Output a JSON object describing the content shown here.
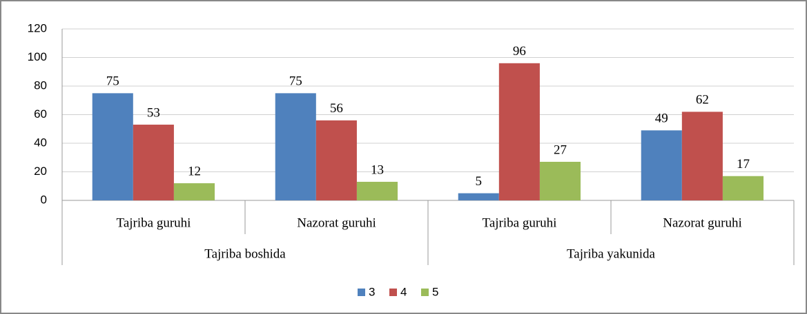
{
  "chart_data": {
    "type": "bar",
    "categories": [
      "Tajriba guruhi",
      "Nazorat guruhi",
      "Tajriba guruhi",
      "Nazorat guruhi"
    ],
    "groups": [
      "Tajriba boshida",
      "Tajriba yakunida"
    ],
    "series": [
      {
        "name": "3",
        "color": "#4f81bd",
        "values": [
          75,
          75,
          5,
          49
        ]
      },
      {
        "name": "4",
        "color": "#c0504d",
        "values": [
          53,
          56,
          96,
          62
        ]
      },
      {
        "name": "5",
        "color": "#9bbb59",
        "values": [
          12,
          13,
          27,
          17
        ]
      }
    ],
    "ylim": [
      0,
      120
    ],
    "yticks": [
      0,
      20,
      40,
      60,
      80,
      100,
      120
    ],
    "grid": true,
    "legend": "bottom",
    "data_labels": true
  }
}
